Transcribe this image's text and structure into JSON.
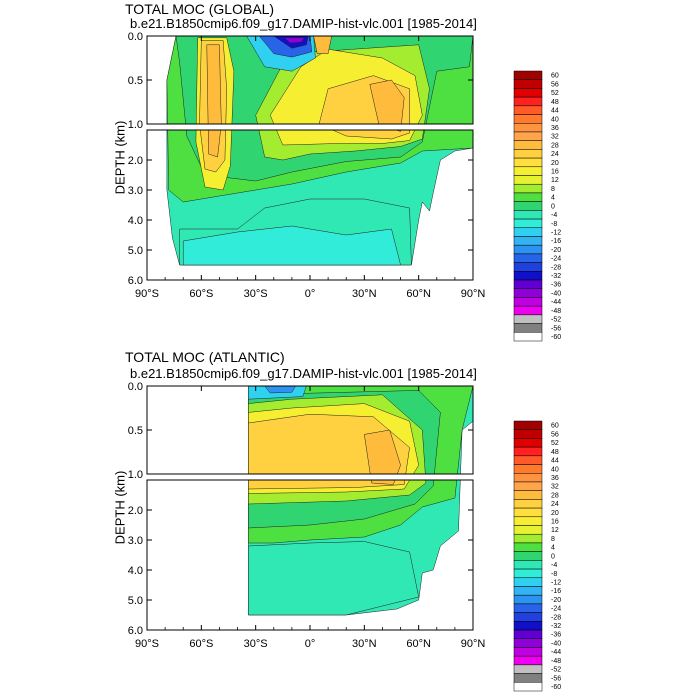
{
  "chart_data": [
    {
      "type": "heatmap",
      "title": "TOTAL MOC (GLOBAL)",
      "subtitle": "b.e21.B1850cmip6.f09_g17.DAMIP-hist-vlc.001 [1985-2014]",
      "xlabel": "",
      "ylabel": "DEPTH (km)",
      "x_ticks": [
        "90°S",
        "60°S",
        "30°S",
        "0°",
        "30°N",
        "60°N",
        "90°N"
      ],
      "y_ticks_upper": [
        "0.0",
        "0.5",
        "1.0"
      ],
      "y_ticks_lower": [
        "2.0",
        "3.0",
        "4.0",
        "5.0",
        "6.0"
      ],
      "xlim": [
        -90,
        90
      ],
      "ylim": [
        6.0,
        0.0
      ],
      "colorbar_labels": [
        "60",
        "56",
        "52",
        "48",
        "44",
        "40",
        "36",
        "32",
        "28",
        "24",
        "20",
        "16",
        "12",
        "8",
        "4",
        "0",
        "-4",
        "-8",
        "-12",
        "-16",
        "-20",
        "-24",
        "-28",
        "-32",
        "-36",
        "-40",
        "-44",
        "-48",
        "-52",
        "-56",
        "-60"
      ]
    },
    {
      "type": "heatmap",
      "title": "TOTAL MOC (ATLANTIC)",
      "subtitle": "b.e21.B1850cmip6.f09_g17.DAMIP-hist-vlc.001 [1985-2014]",
      "xlabel": "",
      "ylabel": "DEPTH (km)",
      "x_ticks": [
        "90°S",
        "60°S",
        "30°S",
        "0°",
        "30°N",
        "60°N",
        "90°N"
      ],
      "y_ticks_upper": [
        "0.0",
        "0.5",
        "1.0"
      ],
      "y_ticks_lower": [
        "2.0",
        "3.0",
        "4.0",
        "5.0",
        "6.0"
      ],
      "xlim": [
        -90,
        90
      ],
      "ylim": [
        6.0,
        0.0
      ],
      "colorbar_labels": [
        "60",
        "56",
        "52",
        "48",
        "44",
        "40",
        "36",
        "32",
        "28",
        "24",
        "20",
        "16",
        "12",
        "8",
        "4",
        "0",
        "-4",
        "-8",
        "-12",
        "-16",
        "-20",
        "-24",
        "-28",
        "-32",
        "-36",
        "-40",
        "-44",
        "-48",
        "-52",
        "-56",
        "-60"
      ]
    }
  ],
  "colors": {
    "colorbar": [
      "#a00000",
      "#c00000",
      "#e00000",
      "#ff2020",
      "#ff5a28",
      "#ff7a2c",
      "#ff9440",
      "#ffa64c",
      "#ffbb3c",
      "#ffd040",
      "#ffde40",
      "#f6ee30",
      "#e6f230",
      "#a4ec30",
      "#4ee040",
      "#30d470",
      "#30e8b4",
      "#30ecd8",
      "#30d0f0",
      "#30b4f4",
      "#2c94f0",
      "#2864e8",
      "#2040e0",
      "#1010c8",
      "#6000d0",
      "#9000d8",
      "#c000e0",
      "#f000f0",
      "#c0c0c0",
      "#808080",
      "#ffffff"
    ],
    "ocean_bg": "#ffffff"
  }
}
